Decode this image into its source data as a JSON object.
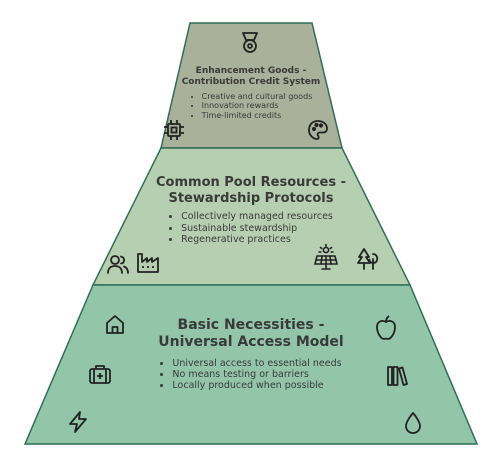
{
  "tiers": {
    "top": {
      "title_line1": "Enhancement Goods -",
      "title_line2": "Contribution Credit System",
      "bullets": [
        "Creative and cultural goods",
        "Innovation rewards",
        "Time-limited credits"
      ],
      "fill": "#aab19a"
    },
    "middle": {
      "title_line1": "Common Pool Resources -",
      "title_line2": "Stewardship Protocols",
      "bullets": [
        "Collectively managed resources",
        "Sustainable stewardship",
        "Regenerative practices"
      ],
      "fill": "#b7cfb1"
    },
    "bottom": {
      "title_line1": "Basic Necessities -",
      "title_line2": "Universal Access Model",
      "bullets": [
        "Universal access to essential needs",
        "No means testing or barriers",
        "Locally produced when possible"
      ],
      "fill": "#93c6a9"
    }
  },
  "colors": {
    "stroke": "#2f6f57",
    "text": "#3a3a3a",
    "icon": "#222222"
  },
  "icons": {
    "top": [
      "medal-icon",
      "chip-icon",
      "palette-icon"
    ],
    "middle": [
      "people-icon",
      "factory-icon",
      "solar-panel-icon",
      "trees-icon"
    ],
    "bottom": [
      "home-icon",
      "apple-icon",
      "first-aid-kit-icon",
      "books-icon",
      "lightning-icon",
      "water-drop-icon"
    ]
  }
}
